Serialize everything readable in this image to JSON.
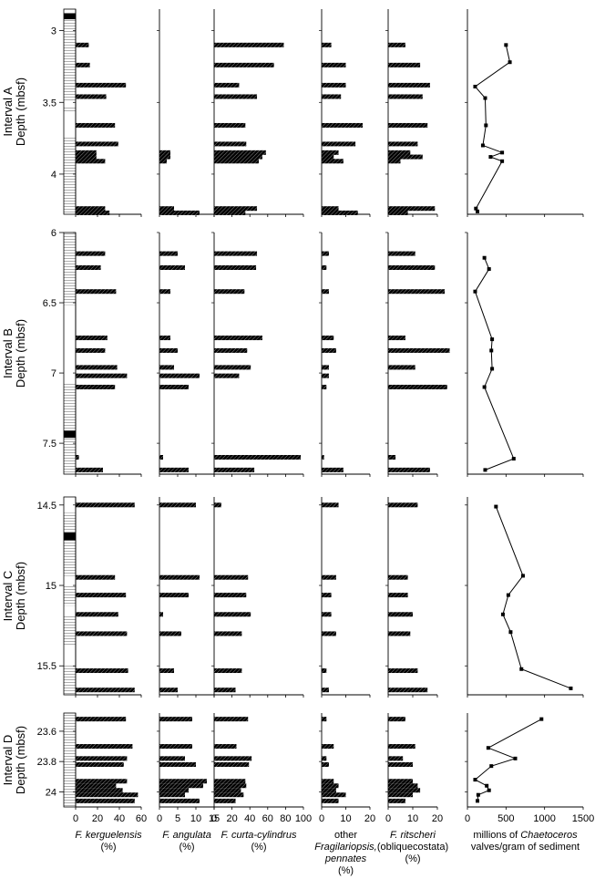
{
  "chart_data": {
    "type": "bar",
    "intervals": [
      {
        "label": "Interval A",
        "depth_label": "Depth (mbsf)",
        "ylim": [
          2.85,
          4.28
        ],
        "ticks": [
          3,
          3.5,
          4
        ],
        "tick_labels": [
          "3",
          "3.5",
          "4"
        ],
        "depths": [
          3.1,
          3.24,
          3.38,
          3.46,
          3.66,
          3.79,
          3.85,
          3.88,
          3.91,
          4.24,
          4.27
        ],
        "chaetoceros_depths": [
          3.1,
          3.22,
          3.39,
          3.47,
          3.66,
          3.8,
          3.85,
          3.88,
          3.91,
          4.24,
          4.26
        ],
        "values": {
          "kerguelensis": [
            12,
            13,
            46,
            28,
            36,
            39,
            19,
            19,
            27,
            27,
            31
          ],
          "angulata": [
            0,
            0,
            0,
            0,
            0,
            0,
            3,
            3,
            2,
            4,
            11
          ],
          "curta": [
            78,
            67,
            28,
            48,
            35,
            36,
            58,
            54,
            50,
            48,
            35
          ],
          "other": [
            4,
            10,
            10,
            8,
            17,
            14,
            7,
            5,
            9,
            7,
            15
          ],
          "ritscheri": [
            7,
            13,
            17,
            14,
            16,
            12,
            9,
            14,
            5,
            19,
            8
          ],
          "chaetoceros": [
            500,
            550,
            100,
            230,
            240,
            200,
            450,
            300,
            450,
            110,
            130
          ]
        }
      },
      {
        "label": "Interval B",
        "depth_label": "Depth (mbsf)",
        "ylim": [
          6.0,
          7.72
        ],
        "ticks": [
          6,
          6.5,
          7,
          7.5
        ],
        "tick_labels": [
          "6",
          "6.5",
          "7",
          "7.5"
        ],
        "depths": [
          6.15,
          6.25,
          6.42,
          6.75,
          6.84,
          6.96,
          7.02,
          7.1,
          7.6,
          7.69
        ],
        "chaetoceros_depths": [
          6.18,
          6.26,
          6.42,
          6.76,
          6.84,
          6.97,
          7.1,
          7.61,
          7.69
        ],
        "values": {
          "kerguelensis": [
            27,
            23,
            37,
            29,
            27,
            38,
            47,
            36,
            3,
            25
          ],
          "angulata": [
            5,
            7,
            3,
            3,
            5,
            4,
            11,
            8,
            1,
            8
          ],
          "curta": [
            48,
            47,
            34,
            54,
            37,
            41,
            28,
            0,
            97,
            45
          ],
          "other": [
            3,
            2,
            3,
            5,
            6,
            3,
            3,
            2,
            1,
            9
          ],
          "ritscheri": [
            11,
            19,
            23,
            7,
            25,
            11,
            0,
            24,
            3,
            17
          ],
          "chaetoceros": [
            220,
            280,
            100,
            320,
            310,
            320,
            220,
            600,
            230
          ]
        }
      },
      {
        "label": "Interval C",
        "depth_label": "Depth (mbsf)",
        "ylim": [
          14.45,
          15.68
        ],
        "ticks": [
          14.5,
          15,
          15.5
        ],
        "tick_labels": [
          "14.5",
          "15",
          "15.5"
        ],
        "depths": [
          14.5,
          14.95,
          15.06,
          15.18,
          15.3,
          15.53,
          15.65
        ],
        "chaetoceros_depths": [
          14.51,
          14.94,
          15.06,
          15.18,
          15.29,
          15.52,
          15.64
        ],
        "values": {
          "kerguelensis": [
            54,
            36,
            46,
            39,
            47,
            48,
            54
          ],
          "angulata": [
            10,
            11,
            8,
            1,
            6,
            4,
            5
          ],
          "curta": [
            8,
            38,
            36,
            41,
            31,
            31,
            24
          ],
          "other": [
            7,
            6,
            4,
            4,
            6,
            2,
            3
          ],
          "ritscheri": [
            12,
            8,
            8,
            10,
            9,
            12,
            16
          ],
          "chaetoceros": [
            370,
            720,
            530,
            460,
            560,
            700,
            1340
          ]
        }
      },
      {
        "label": "Interval D",
        "depth_label": "Depth (mbsf)",
        "ylim": [
          23.48,
          24.1
        ],
        "ticks": [
          23.6,
          23.8,
          24
        ],
        "tick_labels": [
          "23.6",
          "23.8",
          "24"
        ],
        "depths": [
          23.52,
          23.7,
          23.78,
          23.82,
          23.93,
          23.96,
          23.99,
          24.02,
          24.06
        ],
        "chaetoceros_depths": [
          23.52,
          23.71,
          23.78,
          23.83,
          23.92,
          23.96,
          23.99,
          24.02,
          24.06
        ],
        "values": {
          "kerguelensis": [
            46,
            52,
            47,
            44,
            47,
            37,
            43,
            57,
            54
          ],
          "angulata": [
            9,
            9,
            7,
            10,
            13,
            12,
            8,
            7,
            11
          ],
          "curta": [
            38,
            25,
            42,
            39,
            35,
            36,
            30,
            33,
            24
          ],
          "other": [
            2,
            5,
            2,
            3,
            5,
            7,
            6,
            10,
            7
          ],
          "ritscheri": [
            7,
            11,
            6,
            10,
            10,
            12,
            13,
            10,
            7
          ],
          "chaetoceros": [
            960,
            270,
            620,
            310,
            100,
            250,
            280,
            140,
            130
          ]
        }
      }
    ],
    "columns": [
      {
        "key": "kerguelensis",
        "xlim": [
          0,
          60
        ],
        "ticks": [
          0,
          20,
          40,
          60
        ],
        "tick_labels": [
          "0",
          "20",
          "40",
          "60"
        ]
      },
      {
        "key": "angulata",
        "xlim": [
          0,
          15
        ],
        "ticks": [
          0,
          5,
          10,
          15
        ],
        "tick_labels": [
          "0",
          "5",
          "10",
          "15"
        ]
      },
      {
        "key": "curta",
        "xlim": [
          0,
          100
        ],
        "ticks": [
          0,
          20,
          40,
          60,
          80,
          100
        ],
        "tick_labels": [
          "0",
          "20",
          "40",
          "60",
          "80",
          "100"
        ]
      },
      {
        "key": "other",
        "xlim": [
          0,
          20
        ],
        "ticks": [
          0,
          10,
          20
        ],
        "tick_labels": [
          "0",
          "10",
          "20"
        ]
      },
      {
        "key": "ritscheri",
        "xlim": [
          0,
          20
        ],
        "ticks": [
          0,
          10,
          20
        ],
        "tick_labels": [
          "0",
          "10",
          "20"
        ]
      },
      {
        "key": "chaetoceros",
        "type": "line",
        "xlim": [
          0,
          1500
        ],
        "ticks": [
          0,
          500,
          1000,
          1500
        ],
        "tick_labels": [
          "0",
          "500",
          "1000",
          "1500"
        ]
      }
    ],
    "xlabels": {
      "kerguelensis": [
        "F. kerguelensis",
        "(%)"
      ],
      "angulata": [
        "F. angulata",
        "(%)"
      ],
      "curta": [
        "F. curta-cylindrus",
        "(%)"
      ],
      "other": [
        "other",
        "Fragilariopsis,",
        "pennates",
        "(%)"
      ],
      "ritscheri": [
        "F. ritscheri",
        "(obliquecostata)",
        "(%)"
      ],
      "chaetoceros": [
        "millions of Chaetoceros",
        "valves/gram of  sediment"
      ]
    },
    "colors": {
      "bar": "#000000",
      "bar_hatch": "#9a9a9a",
      "line": "#000000"
    }
  }
}
